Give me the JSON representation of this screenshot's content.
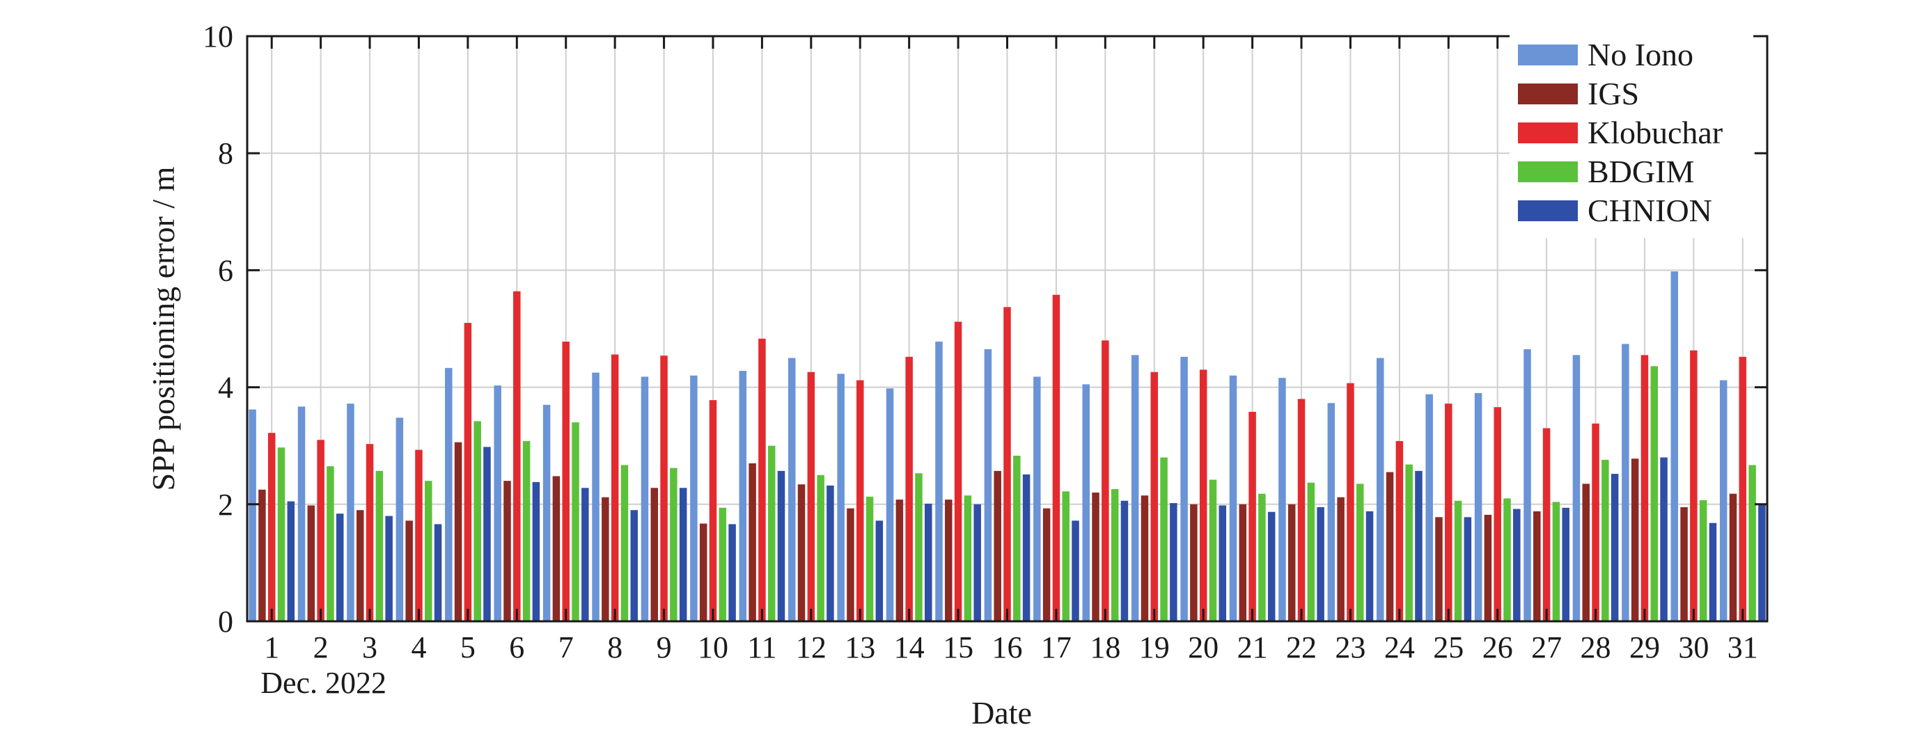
{
  "chart_data": {
    "type": "bar",
    "xlabel": "Date",
    "x_caption": "Dec. 2022",
    "ylabel": "SPP positioning error / m",
    "ylim": [
      0,
      10
    ],
    "yticks": [
      0,
      2,
      4,
      6,
      8,
      10
    ],
    "grid": true,
    "legend_position": "top-right",
    "categories": [
      "1",
      "2",
      "3",
      "4",
      "5",
      "6",
      "7",
      "8",
      "9",
      "10",
      "11",
      "12",
      "13",
      "14",
      "15",
      "16",
      "17",
      "18",
      "19",
      "20",
      "21",
      "22",
      "23",
      "24",
      "25",
      "26",
      "27",
      "28",
      "29",
      "30",
      "31"
    ],
    "series": [
      {
        "name": "No Iono",
        "color": "#6a94d6",
        "values": [
          3.62,
          3.67,
          3.72,
          3.48,
          4.33,
          4.03,
          3.7,
          4.25,
          4.18,
          4.2,
          4.28,
          4.5,
          4.23,
          3.98,
          4.78,
          4.65,
          4.18,
          4.05,
          4.55,
          4.52,
          4.2,
          4.16,
          3.73,
          4.5,
          3.88,
          3.9,
          4.65,
          4.55,
          4.74,
          5.98,
          4.12
        ]
      },
      {
        "name": "IGS",
        "color": "#8b2a23",
        "values": [
          2.25,
          1.98,
          1.9,
          1.72,
          3.06,
          2.4,
          2.48,
          2.12,
          2.28,
          1.67,
          2.7,
          2.34,
          1.93,
          2.08,
          2.08,
          2.57,
          1.93,
          2.2,
          2.15,
          2.0,
          2.0,
          2.0,
          2.12,
          2.55,
          1.78,
          1.82,
          1.88,
          2.35,
          2.78,
          1.95,
          2.18
        ]
      },
      {
        "name": "Klobuchar",
        "color": "#e32b2f",
        "values": [
          3.22,
          3.1,
          3.03,
          2.93,
          5.1,
          5.64,
          4.78,
          4.56,
          4.54,
          3.78,
          4.83,
          4.26,
          4.12,
          4.52,
          5.12,
          5.37,
          5.58,
          4.8,
          4.26,
          4.3,
          3.58,
          3.8,
          4.07,
          3.08,
          3.72,
          3.66,
          3.3,
          3.38,
          4.55,
          4.63,
          4.52
        ]
      },
      {
        "name": "BDGIM",
        "color": "#5cc13a",
        "values": [
          2.97,
          2.65,
          2.57,
          2.4,
          3.42,
          3.08,
          3.4,
          2.67,
          2.62,
          1.94,
          3.0,
          2.5,
          2.13,
          2.53,
          2.15,
          2.83,
          2.22,
          2.26,
          2.8,
          2.42,
          2.18,
          2.37,
          2.35,
          2.68,
          2.06,
          2.1,
          2.04,
          2.76,
          4.36,
          2.07,
          2.67
        ]
      },
      {
        "name": "CHNION",
        "color": "#2f4fa6",
        "values": [
          2.05,
          1.84,
          1.8,
          1.66,
          2.98,
          2.38,
          2.28,
          1.9,
          2.28,
          1.66,
          2.57,
          2.32,
          1.72,
          2.01,
          2.0,
          2.51,
          1.72,
          2.06,
          2.02,
          1.98,
          1.87,
          1.95,
          1.88,
          2.57,
          1.78,
          1.92,
          1.94,
          2.52,
          2.8,
          1.68,
          2.0
        ]
      }
    ]
  }
}
